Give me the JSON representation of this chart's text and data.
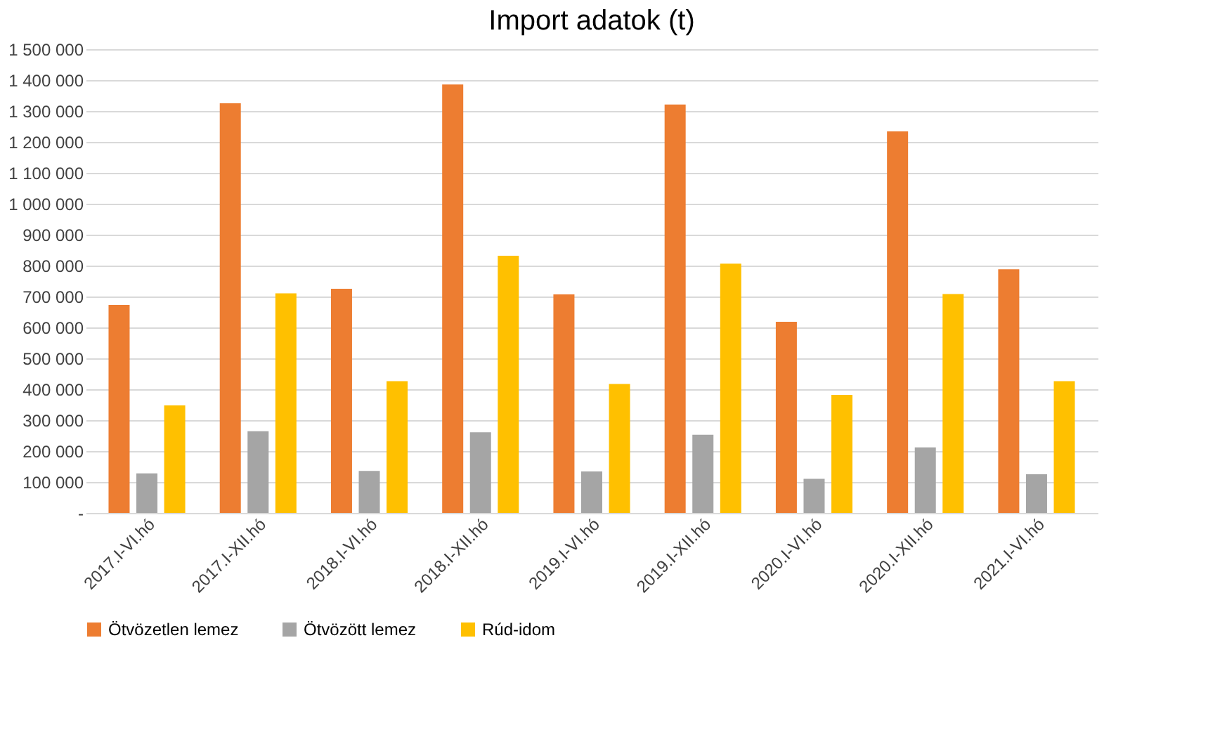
{
  "chart_data": {
    "type": "bar",
    "title": "Import adatok (t)",
    "categories": [
      "2017.I-VI.hó",
      "2017.I-XII.hó",
      "2018.I-VI.hó",
      "2018.I-XII.hó",
      "2019.I-VI.hó",
      "2019.I-XII.hó",
      "2020.I-VI.hó",
      "2020.I-XII.hó",
      "2021.I-VI.hó"
    ],
    "series": [
      {
        "name": "Ötvözetlen lemez",
        "color": "#ed7d31",
        "values": [
          673000,
          1325000,
          725000,
          1386000,
          707000,
          1321000,
          618000,
          1234000,
          788000
        ]
      },
      {
        "name": "Ötvözött lemez",
        "color": "#a5a5a5",
        "values": [
          128000,
          264000,
          136000,
          261000,
          134000,
          253000,
          110000,
          212000,
          125000
        ]
      },
      {
        "name": "Rúd-idom",
        "color": "#ffc000",
        "values": [
          348000,
          710000,
          426000,
          832000,
          417000,
          806000,
          382000,
          708000,
          426000
        ]
      }
    ],
    "ylim": [
      0,
      1500000
    ],
    "yticks": [
      {
        "value": 0,
        "label": "-"
      },
      {
        "value": 100000,
        "label": "100 000"
      },
      {
        "value": 200000,
        "label": "200 000"
      },
      {
        "value": 300000,
        "label": "300 000"
      },
      {
        "value": 400000,
        "label": "400 000"
      },
      {
        "value": 500000,
        "label": "500 000"
      },
      {
        "value": 600000,
        "label": "600 000"
      },
      {
        "value": 700000,
        "label": "700 000"
      },
      {
        "value": 800000,
        "label": "800 000"
      },
      {
        "value": 900000,
        "label": "900 000"
      },
      {
        "value": 1000000,
        "label": "1 000 000"
      },
      {
        "value": 1100000,
        "label": "1 100 000"
      },
      {
        "value": 1200000,
        "label": "1 200 000"
      },
      {
        "value": 1300000,
        "label": "1 300 000"
      },
      {
        "value": 1400000,
        "label": "1 400 000"
      },
      {
        "value": 1500000,
        "label": "1 500 000"
      }
    ],
    "grid": "y",
    "legend": "bottom"
  }
}
